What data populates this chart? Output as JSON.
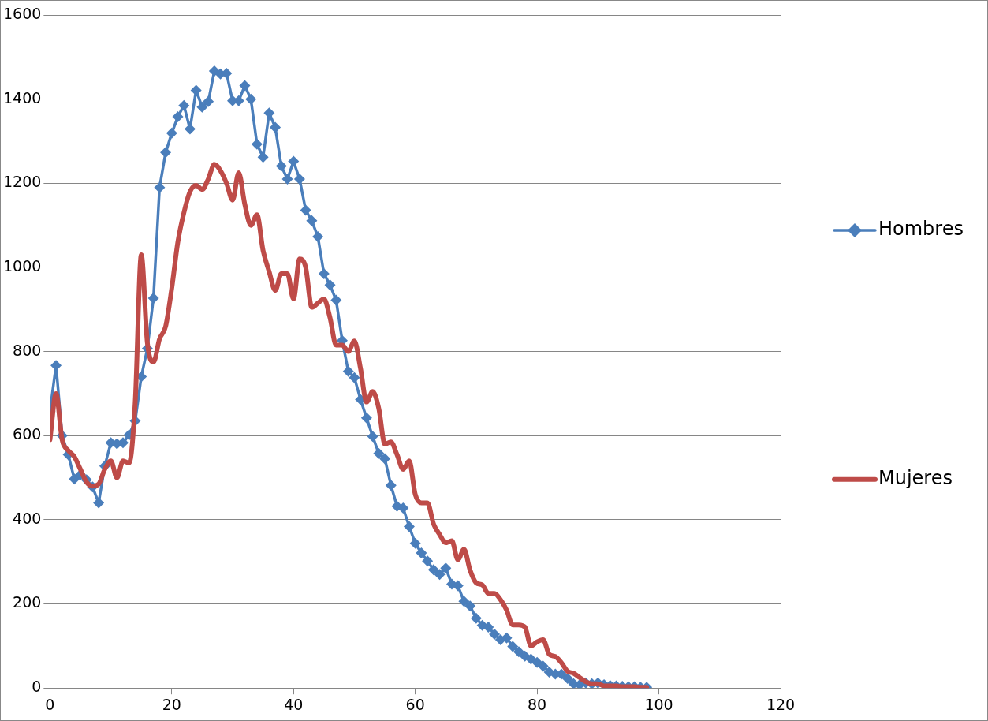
{
  "chart_data": {
    "type": "line",
    "x": [
      0,
      1,
      2,
      3,
      4,
      5,
      6,
      7,
      8,
      9,
      10,
      11,
      12,
      13,
      14,
      15,
      16,
      17,
      18,
      19,
      20,
      21,
      22,
      23,
      24,
      25,
      26,
      27,
      28,
      29,
      30,
      31,
      32,
      33,
      34,
      35,
      36,
      37,
      38,
      39,
      40,
      41,
      42,
      43,
      44,
      45,
      46,
      47,
      48,
      49,
      50,
      51,
      52,
      53,
      54,
      55,
      56,
      57,
      58,
      59,
      60,
      61,
      62,
      63,
      64,
      65,
      66,
      67,
      68,
      69,
      70,
      71,
      72,
      73,
      74,
      75,
      76,
      77,
      78,
      79,
      80,
      81,
      82,
      83,
      84,
      85,
      86,
      87,
      88,
      89,
      90,
      91,
      92,
      93,
      94,
      95,
      96,
      97,
      98
    ],
    "series": [
      {
        "name": "Hombres",
        "color": "#4a7ebb",
        "marker": "diamond",
        "values": [
          658,
          767,
          600,
          555,
          497,
          507,
          495,
          478,
          440,
          528,
          583,
          581,
          583,
          602,
          635,
          740,
          807,
          927,
          1190,
          1273,
          1319,
          1358,
          1385,
          1329,
          1421,
          1381,
          1394,
          1467,
          1460,
          1461,
          1396,
          1396,
          1432,
          1400,
          1293,
          1262,
          1367,
          1333,
          1241,
          1210,
          1252,
          1210,
          1136,
          1111,
          1073,
          985,
          958,
          922,
          826,
          753,
          738,
          686,
          642,
          598,
          558,
          545,
          482,
          432,
          428,
          384,
          344,
          321,
          302,
          281,
          270,
          285,
          247,
          243,
          206,
          195,
          166,
          149,
          145,
          128,
          115,
          119,
          99,
          86,
          76,
          69,
          61,
          52,
          38,
          33,
          33,
          23,
          10,
          8,
          12,
          10,
          12,
          8,
          6,
          5,
          4,
          3,
          3,
          2,
          2
        ]
      },
      {
        "name": "Mujeres",
        "color": "#be4b48",
        "marker": "none",
        "values": [
          590,
          700,
          590,
          565,
          550,
          520,
          490,
          480,
          485,
          520,
          540,
          500,
          540,
          535,
          680,
          1030,
          820,
          775,
          830,
          860,
          950,
          1060,
          1130,
          1180,
          1195,
          1185,
          1210,
          1245,
          1230,
          1200,
          1160,
          1225,
          1150,
          1100,
          1125,
          1040,
          990,
          945,
          985,
          985,
          925,
          1020,
          1000,
          905,
          915,
          925,
          880,
          815,
          815,
          800,
          825,
          760,
          680,
          705,
          665,
          580,
          585,
          555,
          520,
          540,
          460,
          440,
          440,
          390,
          365,
          345,
          350,
          305,
          330,
          280,
          250,
          245,
          225,
          225,
          210,
          185,
          150,
          150,
          145,
          100,
          110,
          115,
          80,
          75,
          60,
          40,
          35,
          25,
          15,
          10,
          10,
          5,
          5,
          5,
          3,
          3,
          3,
          2,
          2
        ]
      }
    ],
    "xlim": [
      0,
      120
    ],
    "xticks": [
      0,
      20,
      40,
      60,
      80,
      100,
      120
    ],
    "ylim": [
      0,
      1600
    ],
    "yticks": [
      0,
      200,
      400,
      600,
      800,
      1000,
      1200,
      1400,
      1600
    ],
    "grid": "y",
    "legend": "right"
  }
}
